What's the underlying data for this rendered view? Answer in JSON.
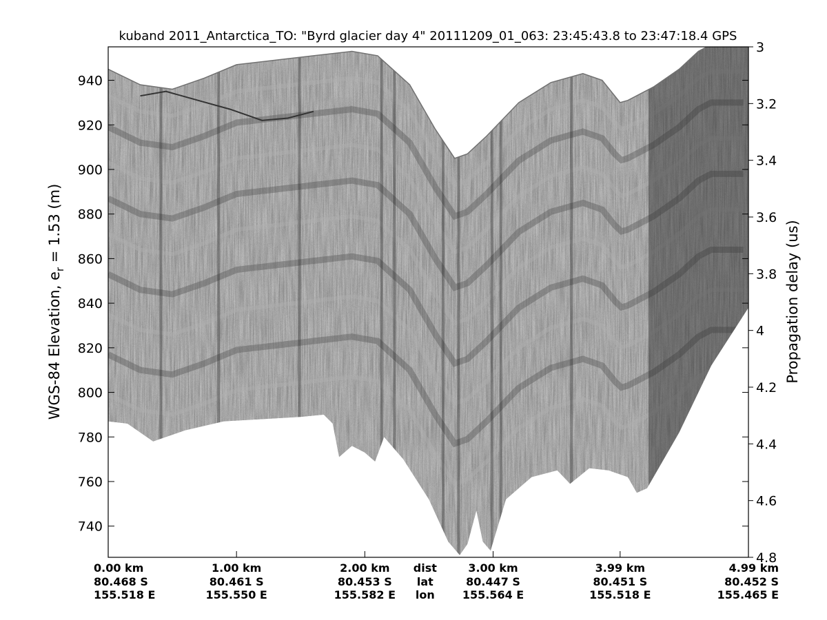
{
  "chart_data": {
    "type": "heatmap",
    "title": "kuband 2011_Antarctica_TO: \"Byrd glacier day 4\"  20111209_01_063: 23:45:43.8 to 23:47:18.4 GPS",
    "ylabel": {
      "prefix": "WGS-84 Elevation, e",
      "sub": "r",
      "suffix": " = 1.53 (m)"
    },
    "y2label": "Propagation delay (us)",
    "ylim": [
      726,
      955
    ],
    "y2lim": [
      3.0,
      4.8
    ],
    "xlim": [
      0,
      4.99
    ],
    "colormap": "gray",
    "y_ticks": [
      940,
      920,
      900,
      880,
      860,
      840,
      820,
      800,
      780,
      760,
      740
    ],
    "y2_ticks": [
      "3",
      "3.2",
      "3.4",
      "3.6",
      "3.8",
      "4",
      "4.2",
      "4.4",
      "4.6",
      "4.8"
    ],
    "x_ticks": [
      {
        "dist_km": 0.0,
        "dist": "0.00 km",
        "lat": "80.468 S",
        "lon": "155.518 E"
      },
      {
        "dist_km": 1.0,
        "dist": "1.00 km",
        "lat": "80.461 S",
        "lon": "155.550 E"
      },
      {
        "dist_km": 2.0,
        "dist": "2.00 km",
        "lat": "80.453 S",
        "lon": "155.582 E"
      },
      {
        "dist_km": 3.0,
        "dist": "3.00 km",
        "lat": "80.447 S",
        "lon": "155.564 E"
      },
      {
        "dist_km": 3.99,
        "dist": "3.99 km",
        "lat": "80.451 S",
        "lon": "155.518 E"
      },
      {
        "dist_km": 4.99,
        "dist": "4.99 km",
        "lat": "80.452 S",
        "lon": "155.465 E"
      }
    ],
    "row_labels": [
      "dist",
      "lat",
      "lon"
    ],
    "row_labels_at_km": 2.47,
    "surface_top": [
      [
        0,
        945
      ],
      [
        0.25,
        938
      ],
      [
        0.5,
        936
      ],
      [
        0.75,
        941
      ],
      [
        1.0,
        947
      ],
      [
        1.3,
        949
      ],
      [
        1.6,
        951
      ],
      [
        1.9,
        953
      ],
      [
        2.1,
        951
      ],
      [
        2.35,
        938
      ],
      [
        2.55,
        918
      ],
      [
        2.7,
        905
      ],
      [
        2.8,
        907
      ],
      [
        2.95,
        915
      ],
      [
        3.2,
        930
      ],
      [
        3.45,
        939
      ],
      [
        3.7,
        943
      ],
      [
        3.85,
        940
      ],
      [
        3.99,
        930
      ],
      [
        4.05,
        931
      ],
      [
        4.25,
        937
      ],
      [
        4.45,
        945
      ],
      [
        4.6,
        953
      ],
      [
        4.7,
        956
      ],
      [
        4.99,
        956
      ]
    ],
    "surface_bottom": [
      [
        0,
        787
      ],
      [
        0.15,
        786
      ],
      [
        0.35,
        778
      ],
      [
        0.6,
        783
      ],
      [
        0.9,
        787
      ],
      [
        1.2,
        788
      ],
      [
        1.5,
        789
      ],
      [
        1.68,
        790
      ],
      [
        1.75,
        786
      ],
      [
        1.8,
        771
      ],
      [
        1.9,
        776
      ],
      [
        2.0,
        773
      ],
      [
        2.08,
        769
      ],
      [
        2.15,
        780
      ],
      [
        2.3,
        770
      ],
      [
        2.5,
        752
      ],
      [
        2.65,
        733
      ],
      [
        2.74,
        727
      ],
      [
        2.8,
        732
      ],
      [
        2.87,
        747
      ],
      [
        2.92,
        733
      ],
      [
        2.98,
        729
      ],
      [
        3.1,
        752
      ],
      [
        3.3,
        762
      ],
      [
        3.5,
        765
      ],
      [
        3.6,
        759
      ],
      [
        3.75,
        766
      ],
      [
        3.9,
        765
      ],
      [
        4.05,
        762
      ],
      [
        4.12,
        755
      ],
      [
        4.2,
        757
      ],
      [
        4.45,
        782
      ],
      [
        4.7,
        812
      ],
      [
        4.99,
        838
      ]
    ],
    "internal_layer": [
      [
        0.25,
        933
      ],
      [
        0.45,
        935
      ],
      [
        0.7,
        931
      ],
      [
        0.95,
        927
      ],
      [
        1.2,
        922
      ],
      [
        1.4,
        923
      ],
      [
        1.6,
        926
      ]
    ],
    "reflector_band_depths_m": [
      12,
      26,
      42,
      58,
      74,
      92,
      110,
      128,
      146
    ]
  }
}
